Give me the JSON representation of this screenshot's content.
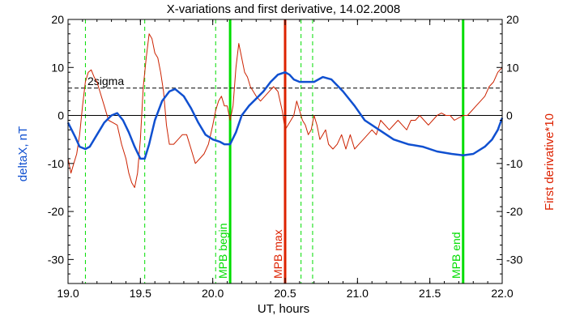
{
  "chart_data": {
    "type": "line",
    "title": "X-variations and first derivative, 14.02.2008",
    "xlabel": "UT, hours",
    "ylabel_left": "deltaX, nT",
    "ylabel_right": "First derivative*10",
    "xlim": [
      19.0,
      22.0
    ],
    "ylim": [
      -35,
      20
    ],
    "x_ticks": [
      "19.0",
      "19.5",
      "20.0",
      "20.5",
      "21.0",
      "21.5",
      "22.0"
    ],
    "x_tick_values": [
      19.0,
      19.5,
      20.0,
      20.5,
      21.0,
      21.5,
      22.0
    ],
    "y_ticks": [
      20,
      10,
      0,
      -10,
      -20,
      -30
    ],
    "grid": false,
    "reference_lines": [
      {
        "label": "2sigma",
        "y": 5.7,
        "style": "dashed",
        "color": "#000000"
      },
      {
        "y": 0,
        "style": "solid",
        "color": "#000000"
      }
    ],
    "vertical_lines": [
      {
        "x": 19.12,
        "style": "dashed",
        "color": "#00dd00",
        "label": ""
      },
      {
        "x": 19.53,
        "style": "dashed",
        "color": "#00dd00",
        "label": ""
      },
      {
        "x": 20.02,
        "style": "dashed",
        "color": "#00dd00",
        "label": ""
      },
      {
        "x": 20.12,
        "style": "solid",
        "color": "#00dd00",
        "label": "MPB begin"
      },
      {
        "x": 20.5,
        "style": "solid",
        "color": "#dd2200",
        "label": "MPB max"
      },
      {
        "x": 20.61,
        "style": "dashed",
        "color": "#00dd00",
        "label": ""
      },
      {
        "x": 20.69,
        "style": "dashed",
        "color": "#00dd00",
        "label": ""
      },
      {
        "x": 21.73,
        "style": "solid",
        "color": "#00dd00",
        "label": "MPB end"
      }
    ],
    "series": [
      {
        "name": "deltaX, nT",
        "color": "#1050d0",
        "x": [
          19.0,
          19.05,
          19.08,
          19.12,
          19.15,
          19.2,
          19.25,
          19.3,
          19.34,
          19.38,
          19.42,
          19.46,
          19.5,
          19.53,
          19.56,
          19.6,
          19.65,
          19.7,
          19.74,
          19.8,
          19.85,
          19.9,
          19.95,
          20.0,
          20.05,
          20.08,
          20.12,
          20.16,
          20.2,
          20.25,
          20.3,
          20.35,
          20.4,
          20.45,
          20.5,
          20.53,
          20.56,
          20.6,
          20.65,
          20.7,
          20.76,
          20.82,
          20.9,
          20.98,
          21.05,
          21.15,
          21.25,
          21.35,
          21.45,
          21.55,
          21.65,
          21.73,
          21.8,
          21.88,
          21.93,
          21.97,
          22.0
        ],
        "y": [
          -1.5,
          -4.5,
          -6.5,
          -7,
          -6.5,
          -4,
          -1.5,
          0,
          0.5,
          -1,
          -3.5,
          -6.5,
          -9,
          -9,
          -6,
          -1,
          3,
          5,
          5.5,
          4,
          1.5,
          -1.5,
          -4,
          -5,
          -5.5,
          -6,
          -6,
          -3.5,
          0,
          2,
          3.5,
          5,
          7,
          8.5,
          9,
          8.5,
          7.5,
          7,
          7,
          7,
          8,
          7.5,
          5,
          2,
          -1,
          -3,
          -5,
          -6,
          -6.5,
          -7.5,
          -8,
          -8.3,
          -8,
          -6.5,
          -5,
          -3,
          -0.5
        ]
      },
      {
        "name": "First derivative*10",
        "color": "#cc2200",
        "x": [
          19.0,
          19.02,
          19.04,
          19.06,
          19.08,
          19.1,
          19.12,
          19.14,
          19.16,
          19.18,
          19.2,
          19.22,
          19.25,
          19.28,
          19.31,
          19.34,
          19.37,
          19.4,
          19.42,
          19.44,
          19.46,
          19.48,
          19.5,
          19.52,
          19.54,
          19.56,
          19.58,
          19.6,
          19.62,
          19.64,
          19.66,
          19.68,
          19.7,
          19.73,
          19.76,
          19.79,
          19.82,
          19.85,
          19.88,
          19.91,
          19.94,
          19.97,
          20.0,
          20.02,
          20.04,
          20.06,
          20.08,
          20.1,
          20.12,
          20.14,
          20.16,
          20.18,
          20.2,
          20.22,
          20.24,
          20.26,
          20.28,
          20.3,
          20.33,
          20.36,
          20.39,
          20.42,
          20.45,
          20.48,
          20.5,
          20.52,
          20.54,
          20.56,
          20.58,
          20.6,
          20.62,
          20.64,
          20.66,
          20.68,
          20.7,
          20.72,
          20.74,
          20.76,
          20.78,
          20.8,
          20.83,
          20.86,
          20.89,
          20.92,
          20.95,
          20.98,
          21.01,
          21.04,
          21.07,
          21.1,
          21.13,
          21.16,
          21.19,
          21.22,
          21.25,
          21.28,
          21.31,
          21.34,
          21.37,
          21.4,
          21.43,
          21.46,
          21.49,
          21.52,
          21.55,
          21.58,
          21.61,
          21.64,
          21.67,
          21.7,
          21.73,
          21.76,
          21.79,
          21.82,
          21.85,
          21.88,
          21.91,
          21.94,
          21.97,
          22.0
        ],
        "y": [
          -9,
          -12,
          -10,
          -8,
          -4,
          2,
          7,
          9,
          9.5,
          8,
          7,
          5,
          2,
          -1,
          -1.5,
          -2,
          -6,
          -9,
          -12,
          -14,
          -15,
          -12,
          -5,
          6,
          12,
          17,
          16,
          13,
          12,
          9,
          5,
          -2,
          -6,
          -6,
          -5,
          -4,
          -4,
          -7,
          -10,
          -9,
          -8,
          -6,
          -2,
          1,
          3,
          4,
          2,
          2,
          -1,
          2,
          10,
          15,
          12,
          9,
          8,
          6,
          5,
          4,
          3,
          4,
          5,
          6,
          5,
          1,
          -3,
          -2,
          -1,
          0,
          3,
          1,
          -1,
          -2,
          -4,
          -3,
          0,
          -2,
          -5,
          -4,
          -3,
          -6,
          -7,
          -6,
          -4,
          -7,
          -4,
          -7,
          -6,
          -5,
          -4,
          -3,
          -4,
          -1,
          -2,
          -3,
          -2,
          -1,
          -2,
          -3,
          -1,
          -1,
          0,
          -1,
          -2,
          -1,
          0,
          0.5,
          0,
          0,
          -1,
          -0.5,
          0,
          0,
          1,
          2,
          3,
          4,
          6,
          7,
          9,
          10
        ]
      }
    ]
  }
}
